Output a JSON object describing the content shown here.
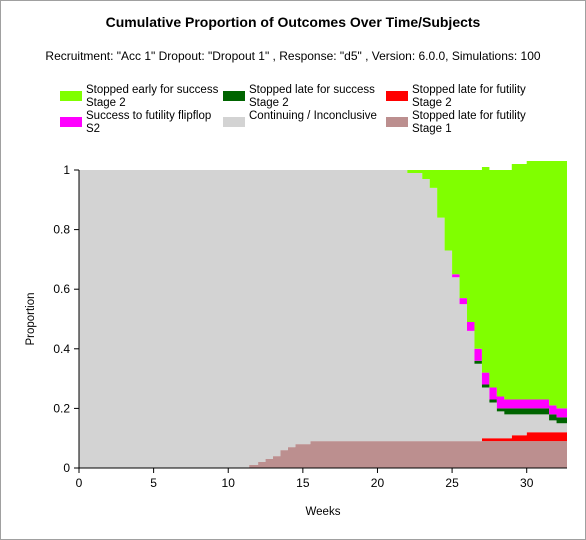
{
  "title": "Cumulative Proportion of Outcomes Over Time/Subjects",
  "subtitle": "Recruitment: \"Acc 1\" Dropout: \"Dropout 1\" , Response: \"d5\" , Version: 6.0.0, Simulations: 100",
  "legend": [
    {
      "line1": "Stopped early for success",
      "line2": "Stage 2",
      "color": "#80ff00"
    },
    {
      "line1": "Stopped late for success",
      "line2": "Stage 2",
      "color": "#006400"
    },
    {
      "line1": "Stopped late for futility",
      "line2": "Stage 2",
      "color": "#ff0000"
    },
    {
      "line1": "Success to futility flipflop",
      "line2": "S2",
      "color": "#ff00ff"
    },
    {
      "line1": "Continuing / Inconclusive",
      "line2": "",
      "color": "#d3d3d3"
    },
    {
      "line1": "Stopped late for futility",
      "line2": "Stage 1",
      "color": "#bc8f8f"
    }
  ],
  "chart_data": {
    "type": "area",
    "stacked": true,
    "xlabel": "Weeks",
    "ylabel": "Proportion",
    "xlim": [
      0,
      32.7
    ],
    "ylim": [
      0,
      1
    ],
    "x_ticks": [
      "0",
      "5",
      "10",
      "15",
      "20",
      "25",
      "30"
    ],
    "y_ticks": [
      "0",
      "0.2",
      "0.4",
      "0.6",
      "0.8",
      "1"
    ],
    "x": [
      0,
      11,
      11.4,
      12,
      12.5,
      13,
      13.5,
      14,
      14.5,
      15,
      15.5,
      16,
      20,
      21.5,
      22,
      23,
      23.5,
      24,
      24.5,
      25,
      25.5,
      26,
      26.5,
      27,
      27.5,
      28,
      28.5,
      29,
      29.5,
      30,
      30.5,
      31,
      31.5,
      32,
      32.7
    ],
    "series": [
      {
        "name": "Stopped late for futility Stage 1",
        "color": "#bc8f8f",
        "values": [
          0,
          0,
          0.01,
          0.02,
          0.03,
          0.04,
          0.06,
          0.07,
          0.08,
          0.08,
          0.09,
          0.09,
          0.09,
          0.09,
          0.09,
          0.09,
          0.09,
          0.09,
          0.09,
          0.09,
          0.09,
          0.09,
          0.09,
          0.09,
          0.09,
          0.09,
          0.09,
          0.09,
          0.09,
          0.09,
          0.09,
          0.09,
          0.09,
          0.09,
          0.09
        ]
      },
      {
        "name": "Stopped late for futility Stage 2",
        "color": "#ff0000",
        "values": [
          0,
          0,
          0,
          0,
          0,
          0,
          0,
          0,
          0,
          0,
          0,
          0,
          0,
          0,
          0,
          0,
          0,
          0,
          0,
          0,
          0,
          0,
          0,
          0.01,
          0.01,
          0.01,
          0.01,
          0.02,
          0.02,
          0.03,
          0.03,
          0.03,
          0.03,
          0.03,
          0.03
        ]
      },
      {
        "name": "Continuing / Inconclusive",
        "color": "#d3d3d3",
        "values": [
          1,
          1,
          0.99,
          0.98,
          0.97,
          0.96,
          0.94,
          0.93,
          0.92,
          0.92,
          0.91,
          0.91,
          0.91,
          0.91,
          0.9,
          0.88,
          0.85,
          0.75,
          0.64,
          0.55,
          0.46,
          0.37,
          0.26,
          0.17,
          0.12,
          0.09,
          0.08,
          0.07,
          0.07,
          0.06,
          0.06,
          0.06,
          0.04,
          0.03,
          0.03
        ]
      },
      {
        "name": "Stopped late for success Stage 2",
        "color": "#006400",
        "values": [
          0,
          0,
          0,
          0,
          0,
          0,
          0,
          0,
          0,
          0,
          0,
          0,
          0,
          0,
          0,
          0,
          0,
          0,
          0,
          0,
          0,
          0,
          0.01,
          0.01,
          0.01,
          0.01,
          0.02,
          0.02,
          0.02,
          0.02,
          0.02,
          0.02,
          0.02,
          0.02,
          0.02
        ]
      },
      {
        "name": "Success to futility flipflop S2",
        "color": "#ff00ff",
        "values": [
          0,
          0,
          0,
          0,
          0,
          0,
          0,
          0,
          0,
          0,
          0,
          0,
          0,
          0,
          0,
          0,
          0,
          0,
          0,
          0.01,
          0.02,
          0.03,
          0.04,
          0.04,
          0.04,
          0.04,
          0.03,
          0.03,
          0.03,
          0.03,
          0.03,
          0.03,
          0.03,
          0.03,
          0.03
        ]
      },
      {
        "name": "Stopped early for success Stage 2",
        "color": "#80ff00",
        "values": [
          0,
          0,
          0,
          0,
          0,
          0,
          0,
          0,
          0,
          0,
          0,
          0,
          0,
          0,
          0.01,
          0.03,
          0.06,
          0.16,
          0.27,
          0.35,
          0.43,
          0.51,
          0.6,
          0.69,
          0.73,
          0.76,
          0.77,
          0.79,
          0.79,
          0.8,
          0.8,
          0.8,
          0.82,
          0.83,
          0.83
        ]
      }
    ]
  }
}
